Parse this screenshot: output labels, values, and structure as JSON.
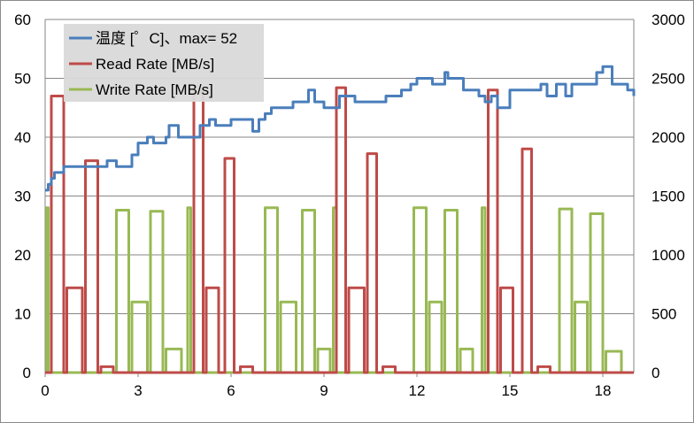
{
  "chart_data": {
    "type": "line",
    "x_axis": {
      "min": 0,
      "max": 19,
      "ticks": [
        "0",
        "3",
        "6",
        "9",
        "12",
        "15",
        "18"
      ]
    },
    "y_left": {
      "min": 0,
      "max": 60,
      "ticks": [
        "0",
        "10",
        "20",
        "30",
        "40",
        "50",
        "60"
      ]
    },
    "y_right": {
      "min": 0,
      "max": 3000,
      "ticks": [
        "0",
        "500",
        "1000",
        "1500",
        "2000",
        "2500",
        "3000"
      ]
    },
    "grid": "horizontal",
    "legend_position": "top-left",
    "series": [
      {
        "name": "温度 [゜C]、max= 52",
        "axis": "left",
        "color": "#4a7ebb",
        "x": [
          0,
          0.1,
          0.2,
          0.3,
          0.6,
          1.0,
          1.5,
          2.0,
          2.3,
          2.5,
          2.8,
          3.0,
          3.3,
          3.5,
          3.9,
          4.0,
          4.3,
          4.6,
          5.0,
          5.3,
          5.5,
          6.0,
          6.4,
          6.7,
          6.9,
          7.1,
          7.3,
          7.5,
          8.0,
          8.5,
          8.7,
          9.0,
          9.5,
          10.0,
          10.5,
          10.8,
          11.0,
          11.5,
          11.8,
          12.0,
          12.5,
          12.9,
          13.0,
          13.5,
          14.0,
          14.2,
          14.4,
          14.6,
          15.0,
          15.3,
          15.6,
          16.0,
          16.2,
          16.5,
          16.8,
          17.0,
          17.5,
          17.8,
          18.0,
          18.3,
          18.5,
          18.8,
          19.0
        ],
        "y": [
          31,
          32,
          33,
          34,
          35,
          35,
          35,
          36,
          35,
          35,
          37,
          39,
          40,
          39,
          40,
          42,
          40,
          40,
          42,
          43,
          42,
          43,
          43,
          41,
          43,
          44,
          45,
          45,
          46,
          48,
          46,
          45,
          47,
          46,
          46,
          46,
          47,
          48,
          49,
          50,
          49,
          51,
          50,
          48,
          47,
          46,
          47,
          45,
          48,
          48,
          48,
          49,
          47,
          49,
          47,
          49,
          49,
          51,
          52,
          49,
          49,
          48,
          47
        ]
      },
      {
        "name": "Read Rate [MB/s]",
        "axis": "right",
        "color": "#be4b48",
        "segments": [
          {
            "x": [
              0.2,
              0.6
            ],
            "y": 2350
          },
          {
            "x": [
              0.7,
              1.2
            ],
            "y": 720
          },
          {
            "x": [
              1.3,
              1.7
            ],
            "y": 1800
          },
          {
            "x": [
              1.8,
              2.2
            ],
            "y": 50
          },
          {
            "x": [
              4.8,
              5.1
            ],
            "y": 2380
          },
          {
            "x": [
              5.2,
              5.6
            ],
            "y": 720
          },
          {
            "x": [
              5.8,
              6.1
            ],
            "y": 1820
          },
          {
            "x": [
              6.3,
              6.7
            ],
            "y": 50
          },
          {
            "x": [
              9.4,
              9.7
            ],
            "y": 2420
          },
          {
            "x": [
              9.8,
              10.3
            ],
            "y": 720
          },
          {
            "x": [
              10.4,
              10.7
            ],
            "y": 1860
          },
          {
            "x": [
              10.9,
              11.3
            ],
            "y": 50
          },
          {
            "x": [
              14.3,
              14.6
            ],
            "y": 2400
          },
          {
            "x": [
              14.7,
              15.1
            ],
            "y": 720
          },
          {
            "x": [
              15.4,
              15.7
            ],
            "y": 1900
          },
          {
            "x": [
              15.9,
              16.3
            ],
            "y": 50
          }
        ]
      },
      {
        "name": "Write Rate [MB/s]",
        "axis": "right",
        "color": "#98b954",
        "segments": [
          {
            "x": [
              0.05,
              0.1
            ],
            "y": 1400
          },
          {
            "x": [
              2.3,
              2.7
            ],
            "y": 1380
          },
          {
            "x": [
              2.8,
              3.3
            ],
            "y": 600
          },
          {
            "x": [
              3.4,
              3.8
            ],
            "y": 1370
          },
          {
            "x": [
              3.9,
              4.4
            ],
            "y": 200
          },
          {
            "x": [
              4.6,
              4.7
            ],
            "y": 1400
          },
          {
            "x": [
              7.1,
              7.5
            ],
            "y": 1400
          },
          {
            "x": [
              7.6,
              8.1
            ],
            "y": 600
          },
          {
            "x": [
              8.3,
              8.7
            ],
            "y": 1380
          },
          {
            "x": [
              8.8,
              9.2
            ],
            "y": 200
          },
          {
            "x": [
              9.3,
              9.4
            ],
            "y": 1400
          },
          {
            "x": [
              11.9,
              12.3
            ],
            "y": 1400
          },
          {
            "x": [
              12.4,
              12.8
            ],
            "y": 600
          },
          {
            "x": [
              12.9,
              13.3
            ],
            "y": 1380
          },
          {
            "x": [
              13.4,
              13.8
            ],
            "y": 200
          },
          {
            "x": [
              14.1,
              14.2
            ],
            "y": 1400
          },
          {
            "x": [
              16.6,
              17.0
            ],
            "y": 1390
          },
          {
            "x": [
              17.1,
              17.5
            ],
            "y": 600
          },
          {
            "x": [
              17.6,
              18.0
            ],
            "y": 1350
          },
          {
            "x": [
              18.1,
              18.6
            ],
            "y": 180
          }
        ]
      }
    ]
  }
}
